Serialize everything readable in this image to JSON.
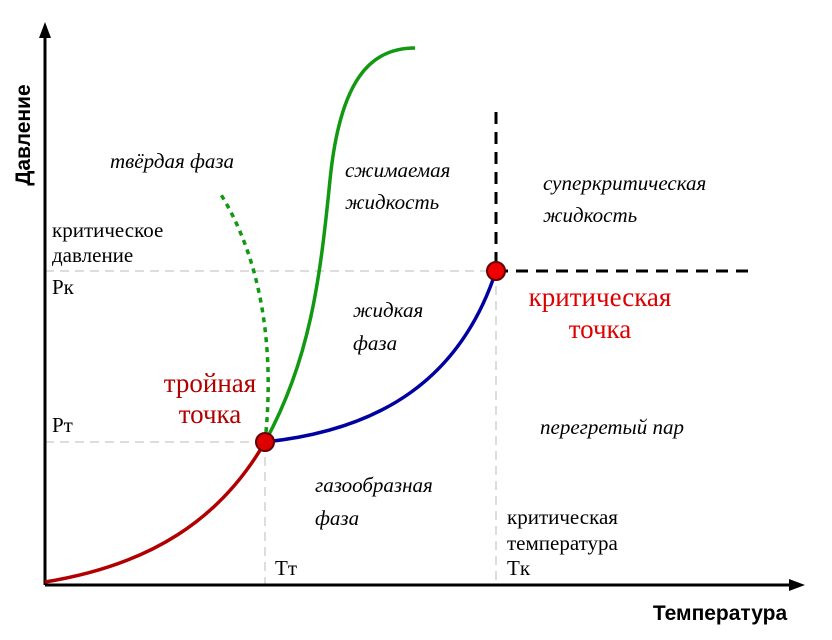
{
  "axes": {
    "y_label": "Давление",
    "x_label": "Температура"
  },
  "regions": {
    "solid": "твёрдая фаза",
    "compressible_liquid": [
      "сжимаемая",
      "жидкость"
    ],
    "supercritical": [
      "суперкритическая",
      "жидкость"
    ],
    "liquid": [
      "жидкая",
      "фаза"
    ],
    "vapor": "перегретый пар",
    "gas": [
      "газообразная",
      "фаза"
    ]
  },
  "points": {
    "critical": [
      "критическая",
      "точка"
    ],
    "triple": [
      "тройная",
      "точка"
    ]
  },
  "levels": {
    "critical_pressure": [
      "критическое",
      "давление",
      "Pк"
    ],
    "triple_pressure": "Pт",
    "critical_temperature": [
      "критическая",
      "температура",
      "Tк"
    ],
    "triple_temperature": "Tт"
  }
}
